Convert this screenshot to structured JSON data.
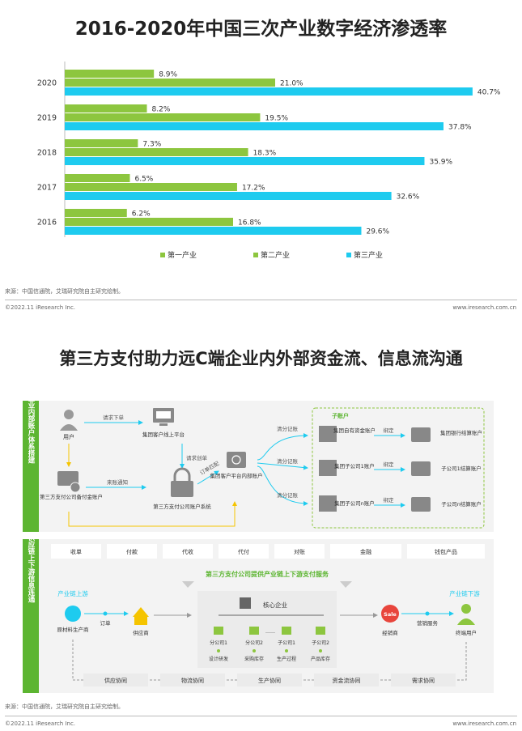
{
  "page1": {
    "title": "2016-2020年中国三次产业数字经济渗透率",
    "source": "来源：中国信通院，艾瑞研究院自主研究绘制。",
    "copyright": "©2022.11 iResearch Inc.",
    "website": "www.iresearch.com.cn"
  },
  "chart_data": {
    "type": "bar",
    "orientation": "horizontal",
    "categories": [
      "2020",
      "2019",
      "2018",
      "2017",
      "2016"
    ],
    "series": [
      {
        "name": "第一产业",
        "color": "#8dc63f",
        "values": [
          8.9,
          8.2,
          7.3,
          6.5,
          6.2
        ],
        "labels": [
          "8.9%",
          "8.2%",
          "7.3%",
          "6.5%",
          "6.2%"
        ]
      },
      {
        "name": "第二产业",
        "color": "#8dc63f",
        "values": [
          21.0,
          19.5,
          18.3,
          17.2,
          16.8
        ],
        "labels": [
          "21.0%",
          "19.5%",
          "18.3%",
          "17.2%",
          "16.8%"
        ]
      },
      {
        "name": "第三产业",
        "color": "#1ecbef",
        "values": [
          40.7,
          37.8,
          35.9,
          32.6,
          29.6
        ],
        "labels": [
          "40.7%",
          "37.8%",
          "35.9%",
          "32.6%",
          "29.6%"
        ]
      }
    ],
    "xlim": [
      0,
      42
    ],
    "legend": "bottom"
  },
  "page2": {
    "title": "第三方支付助力远C端企业内外部资金流、信息流沟通",
    "source": "来源：中国信通院，艾瑞研究院自主研究绘制。",
    "copyright": "©2022.11 iResearch Inc.",
    "website": "www.iresearch.com.cn",
    "colors": {
      "green": "#5cb531",
      "cyan": "#1ecbef",
      "gray": "#888888",
      "yellow": "#f5c400",
      "red": "#e8453c"
    },
    "top_section": {
      "side_label": "企业内部账户体系搭建",
      "user": "用户",
      "request_order": "请求下单",
      "group_platform": "集团客户线上平台",
      "request_create": "请求创单",
      "order_match": "订单匹配",
      "third_party_reserve": "第三方支付公司备付金账户",
      "incoming_notice": "来账通知",
      "account_system": "第三方支付公司账户系统",
      "internal_account": "集团客户平台内部账户",
      "split_clearing": [
        "清分记账",
        "清分记账",
        "清分记账"
      ],
      "sub_account_label": "子账户",
      "sub_accounts": [
        "集团自有资金账户",
        "集团子公司1账户",
        "集团子公司n账户"
      ],
      "bind": [
        "绑定",
        "绑定",
        "绑定"
      ],
      "settlement": [
        "集团银行结算账户",
        "子公司1结算账户",
        "子公司n结算账户"
      ]
    },
    "bottom_section": {
      "side_label": "供应链上下游信息连通",
      "services": [
        "收单",
        "付款",
        "代收",
        "代付",
        "对账",
        "金融",
        "钱包产品"
      ],
      "banner": "第三方支付公司提供产业链上下游支付服务",
      "upstream": "产业链上游",
      "downstream": "产业链下游",
      "raw_producer": "原材料生产商",
      "order": "订单",
      "supplier": "供应商",
      "core_enterprise": "核心企业",
      "branches": [
        "分公司1",
        "分公司2",
        "子公司1",
        "子公司2"
      ],
      "ellipsis": "……",
      "activities": [
        "设计研发",
        "采购库存",
        "生产过程",
        "产品库存"
      ],
      "dealer": "经销商",
      "sale_badge": "Sale",
      "marketing": "营销服务",
      "end_user": "终端用户",
      "collaborations": [
        "供应协同",
        "物流协同",
        "生产协同",
        "资金流协同",
        "需求协同"
      ]
    }
  }
}
